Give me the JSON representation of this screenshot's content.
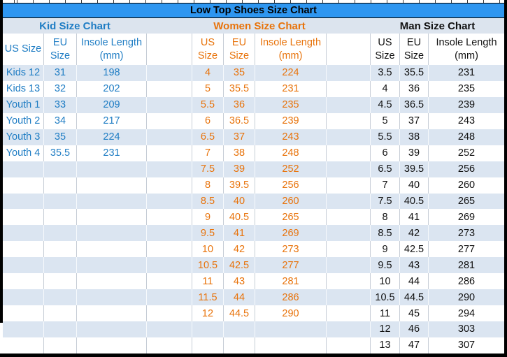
{
  "title": "Low Top Shoes Size Chart",
  "colors": {
    "title_bar_bg": "#2E96F0",
    "section_header_bg": "#DCE4EE",
    "band_row_bg": "#DBE5F1",
    "kid_text": "#1F7DC4",
    "women_text": "#E8730B",
    "man_text": "#111111",
    "gridline": "#C6CDD6"
  },
  "chart_data": {
    "type": "table",
    "title": "Low Top Shoes Size Chart",
    "layout": {
      "banded_rows": true,
      "data_row_count": 18,
      "sections_side_by_side": 3
    },
    "tables": [
      {
        "name": "Kid Size Chart",
        "columns": [
          "US Size",
          "EU Size",
          "Insole Length (mm)"
        ],
        "rows": [
          [
            "Kids 12",
            "31",
            "198"
          ],
          [
            "Kids 13",
            "32",
            "202"
          ],
          [
            "Youth 1",
            "33",
            "209"
          ],
          [
            "Youth 2",
            "34",
            "217"
          ],
          [
            "Youth 3",
            "35",
            "224"
          ],
          [
            "Youth 4",
            "35.5",
            "231"
          ]
        ]
      },
      {
        "name": "Women Size Chart",
        "columns": [
          "US Size",
          "EU Size",
          "Insole Length (mm)"
        ],
        "rows": [
          [
            "4",
            "35",
            "224"
          ],
          [
            "5",
            "35.5",
            "231"
          ],
          [
            "5.5",
            "36",
            "235"
          ],
          [
            "6",
            "36.5",
            "239"
          ],
          [
            "6.5",
            "37",
            "243"
          ],
          [
            "7",
            "38",
            "248"
          ],
          [
            "7.5",
            "39",
            "252"
          ],
          [
            "8",
            "39.5",
            "256"
          ],
          [
            "8.5",
            "40",
            "260"
          ],
          [
            "9",
            "40.5",
            "265"
          ],
          [
            "9.5",
            "41",
            "269"
          ],
          [
            "10",
            "42",
            "273"
          ],
          [
            "10.5",
            "42.5",
            "277"
          ],
          [
            "11",
            "43",
            "281"
          ],
          [
            "11.5",
            "44",
            "286"
          ],
          [
            "12",
            "44.5",
            "290"
          ]
        ]
      },
      {
        "name": "Man Size Chart",
        "columns": [
          "US Size",
          "EU Size",
          "Insole Length (mm)"
        ],
        "rows": [
          [
            "3.5",
            "35.5",
            "231"
          ],
          [
            "4",
            "36",
            "235"
          ],
          [
            "4.5",
            "36.5",
            "239"
          ],
          [
            "5",
            "37",
            "243"
          ],
          [
            "5.5",
            "38",
            "248"
          ],
          [
            "6",
            "39",
            "252"
          ],
          [
            "6.5",
            "39.5",
            "256"
          ],
          [
            "7",
            "40",
            "260"
          ],
          [
            "7.5",
            "40.5",
            "265"
          ],
          [
            "8",
            "41",
            "269"
          ],
          [
            "8.5",
            "42",
            "273"
          ],
          [
            "9",
            "42.5",
            "277"
          ],
          [
            "9.5",
            "43",
            "281"
          ],
          [
            "10",
            "44",
            "286"
          ],
          [
            "10.5",
            "44.5",
            "290"
          ],
          [
            "11",
            "45",
            "294"
          ],
          [
            "12",
            "46",
            "303"
          ],
          [
            "13",
            "47",
            "307"
          ]
        ]
      }
    ]
  }
}
